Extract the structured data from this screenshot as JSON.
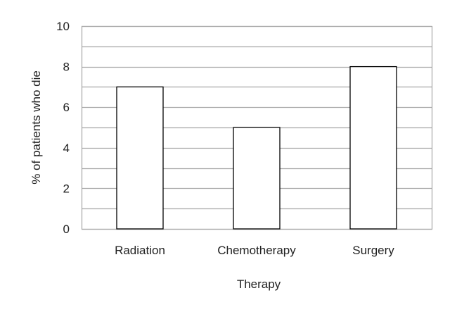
{
  "chart_data": {
    "type": "bar",
    "categories": [
      "Radiation",
      "Chemotherapy",
      "Surgery"
    ],
    "values": [
      7,
      5,
      8
    ],
    "title": "",
    "xlabel": "Therapy",
    "ylabel": "% of patients who die",
    "ylim": [
      0,
      10
    ],
    "y_ticks": [
      0,
      2,
      4,
      6,
      8,
      10
    ],
    "y_gridlines": [
      0,
      1,
      2,
      3,
      4,
      5,
      6,
      7,
      8,
      9,
      10
    ],
    "grid": true,
    "legend": "none",
    "colors": {
      "bar_fill": "#ffffff",
      "bar_stroke": "#000000",
      "grid": "#a6a6a6",
      "frame": "#a6a6a6"
    }
  }
}
